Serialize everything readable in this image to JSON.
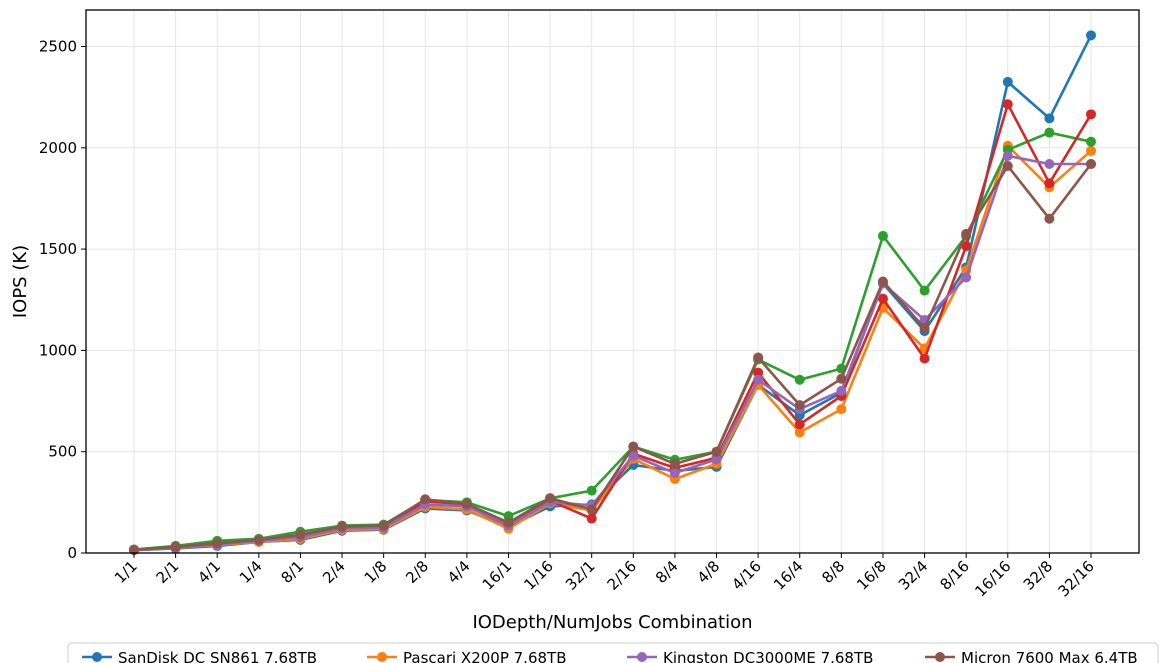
{
  "chart_data": {
    "type": "line",
    "title": "",
    "xlabel": "IODepth/NumJobs Combination",
    "ylabel": "IOPS (K)",
    "categories": [
      "1/1",
      "2/1",
      "4/1",
      "1/4",
      "8/1",
      "2/4",
      "1/8",
      "2/8",
      "4/4",
      "16/1",
      "1/16",
      "32/1",
      "2/16",
      "8/4",
      "4/8",
      "4/16",
      "16/4",
      "8/8",
      "16/8",
      "32/4",
      "8/16",
      "16/16",
      "32/8",
      "32/16"
    ],
    "ylim": [
      0,
      2680
    ],
    "yticks": [
      0,
      500,
      1000,
      1500,
      2000,
      2500
    ],
    "grid": true,
    "legend_position": "bottom",
    "series": [
      {
        "name": "SanDisk DC SN861 7.68TB",
        "color": "#1f77b4",
        "values": [
          14,
          22,
          35,
          55,
          65,
          110,
          115,
          220,
          210,
          130,
          230,
          240,
          435,
          405,
          425,
          830,
          680,
          790,
          1330,
          1095,
          1410,
          2325,
          2145,
          2555
        ]
      },
      {
        "name": "Pascari X200P 7.68TB",
        "color": "#ff7f0e",
        "values": [
          15,
          25,
          40,
          55,
          70,
          115,
          118,
          228,
          215,
          120,
          245,
          210,
          465,
          365,
          440,
          830,
          595,
          710,
          1210,
          1010,
          1395,
          2010,
          1805,
          1985
        ]
      },
      {
        "name": "",
        "color": "#2ca02c",
        "values": [
          17,
          35,
          60,
          70,
          105,
          135,
          140,
          262,
          250,
          182,
          270,
          308,
          525,
          460,
          500,
          955,
          855,
          910,
          1565,
          1295,
          1565,
          1990,
          2075,
          2030
        ]
      },
      {
        "name": "",
        "color": "#d62728",
        "values": [
          15,
          28,
          45,
          62,
          82,
          128,
          130,
          255,
          240,
          140,
          258,
          170,
          490,
          420,
          470,
          890,
          635,
          775,
          1255,
          960,
          1515,
          2215,
          1825,
          2165
        ]
      },
      {
        "name": "Kingston DC3000ME 7.68TB",
        "color": "#9467bd",
        "values": [
          15,
          27,
          42,
          60,
          78,
          122,
          125,
          240,
          230,
          135,
          252,
          235,
          480,
          395,
          462,
          855,
          710,
          800,
          1330,
          1150,
          1360,
          1960,
          1920,
          1920
        ]
      },
      {
        "name": "Micron 7600 Max 6.4TB",
        "color": "#8c564b",
        "values": [
          16,
          30,
          48,
          65,
          90,
          130,
          135,
          265,
          242,
          150,
          270,
          215,
          525,
          440,
          500,
          965,
          730,
          860,
          1340,
          1110,
          1575,
          1910,
          1650,
          1920
        ]
      }
    ]
  }
}
